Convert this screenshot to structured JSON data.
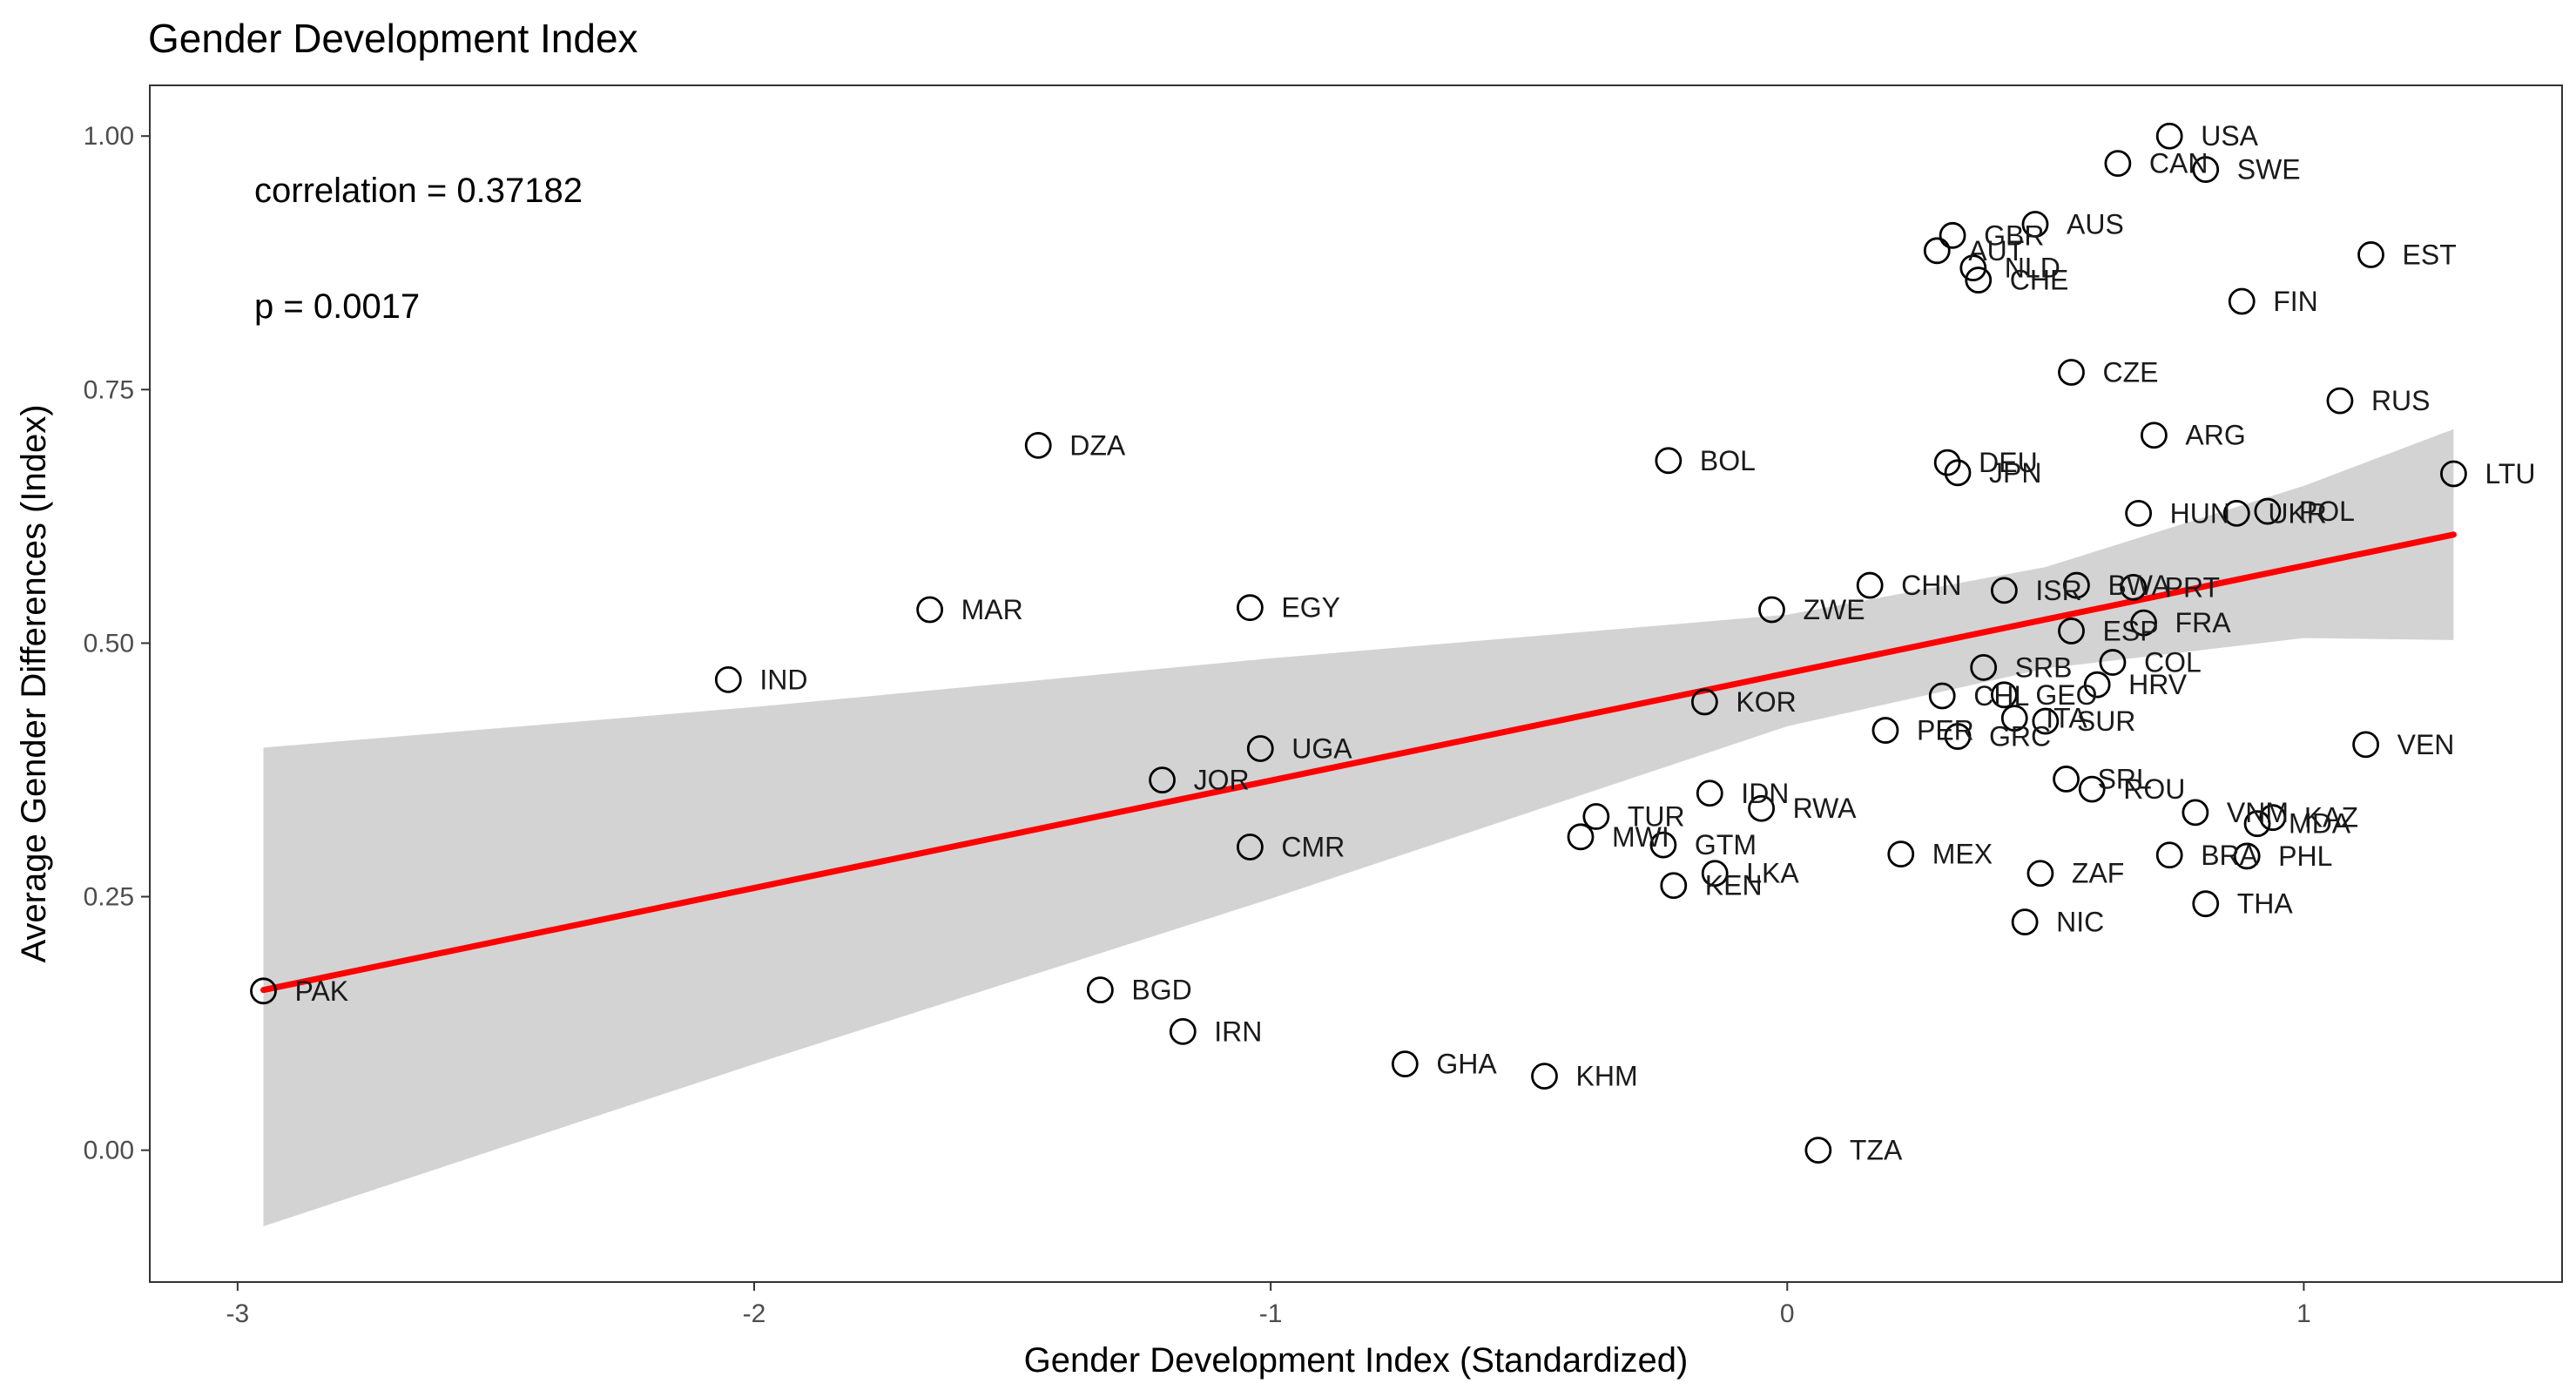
{
  "chart_data": {
    "type": "scatter",
    "title": "Gender Development Index",
    "xlabel": "Gender Development Index (Standardized)",
    "ylabel": "Average Gender Differences (Index)",
    "xlim": [
      -3.17,
      1.5
    ],
    "ylim": [
      -0.13,
      1.05
    ],
    "x_ticks": [
      -3,
      -2,
      -1,
      0,
      1
    ],
    "x_tick_labels": [
      "-3",
      "-2",
      "-1",
      "0",
      "1"
    ],
    "y_ticks": [
      0,
      0.25,
      0.5,
      0.75,
      1
    ],
    "y_tick_labels": [
      "0.00",
      "0.25",
      "0.50",
      "0.75",
      "1.00"
    ],
    "grid": false,
    "annotations": [
      "correlation = 0.37182",
      "p = 0.0017"
    ],
    "regression": {
      "x": [
        -2.95,
        1.29
      ],
      "y": [
        0.158,
        0.607
      ],
      "ci": [
        {
          "x": -2.95,
          "lo": -0.075,
          "hi": 0.397
        },
        {
          "x": -2.0,
          "lo": 0.085,
          "hi": 0.437
        },
        {
          "x": -1.0,
          "lo": 0.248,
          "hi": 0.485
        },
        {
          "x": 0.0,
          "lo": 0.418,
          "hi": 0.528
        },
        {
          "x": 0.5,
          "lo": 0.475,
          "hi": 0.575
        },
        {
          "x": 1.0,
          "lo": 0.505,
          "hi": 0.655
        },
        {
          "x": 1.29,
          "lo": 0.503,
          "hi": 0.711
        }
      ],
      "line_color": "#ff0000",
      "band_color": "#d3d3d3"
    },
    "points": [
      {
        "label": "USA",
        "x": 0.74,
        "y": 1.0
      },
      {
        "label": "CAN",
        "x": 0.64,
        "y": 0.973
      },
      {
        "label": "SWE",
        "x": 0.81,
        "y": 0.967
      },
      {
        "label": "AUS",
        "x": 0.48,
        "y": 0.913
      },
      {
        "label": "GBR",
        "x": 0.32,
        "y": 0.902
      },
      {
        "label": "AUT",
        "x": 0.29,
        "y": 0.887
      },
      {
        "label": "NLD",
        "x": 0.36,
        "y": 0.87
      },
      {
        "label": "CHE",
        "x": 0.37,
        "y": 0.858
      },
      {
        "label": "EST",
        "x": 1.13,
        "y": 0.883
      },
      {
        "label": "FIN",
        "x": 0.88,
        "y": 0.837
      },
      {
        "label": "CZE",
        "x": 0.55,
        "y": 0.767
      },
      {
        "label": "RUS",
        "x": 1.07,
        "y": 0.739
      },
      {
        "label": "DZA",
        "x": -1.45,
        "y": 0.695
      },
      {
        "label": "ARG",
        "x": 0.71,
        "y": 0.705
      },
      {
        "label": "BOL",
        "x": -0.23,
        "y": 0.68
      },
      {
        "label": "DEU",
        "x": 0.31,
        "y": 0.678
      },
      {
        "label": "JPN",
        "x": 0.33,
        "y": 0.668
      },
      {
        "label": "LTU",
        "x": 1.29,
        "y": 0.667
      },
      {
        "label": "HUN",
        "x": 0.68,
        "y": 0.628
      },
      {
        "label": "UKR",
        "x": 0.87,
        "y": 0.628
      },
      {
        "label": "POL",
        "x": 0.93,
        "y": 0.63
      },
      {
        "label": "CHN",
        "x": 0.16,
        "y": 0.557
      },
      {
        "label": "ISR",
        "x": 0.42,
        "y": 0.552
      },
      {
        "label": "BWA",
        "x": 0.56,
        "y": 0.557
      },
      {
        "label": "PRT",
        "x": 0.67,
        "y": 0.555
      },
      {
        "label": "MAR",
        "x": -1.66,
        "y": 0.533
      },
      {
        "label": "EGY",
        "x": -1.04,
        "y": 0.535
      },
      {
        "label": "ZWE",
        "x": -0.03,
        "y": 0.533
      },
      {
        "label": "FRA",
        "x": 0.69,
        "y": 0.52
      },
      {
        "label": "ESP",
        "x": 0.55,
        "y": 0.512
      },
      {
        "label": "COL",
        "x": 0.63,
        "y": 0.481
      },
      {
        "label": "SRB",
        "x": 0.38,
        "y": 0.476
      },
      {
        "label": "IND",
        "x": -2.05,
        "y": 0.464
      },
      {
        "label": "HRV",
        "x": 0.6,
        "y": 0.459
      },
      {
        "label": "CHL",
        "x": 0.3,
        "y": 0.448
      },
      {
        "label": "GEO",
        "x": 0.42,
        "y": 0.449
      },
      {
        "label": "KOR",
        "x": -0.16,
        "y": 0.442
      },
      {
        "label": "ITA",
        "x": 0.44,
        "y": 0.426
      },
      {
        "label": "SUR",
        "x": 0.5,
        "y": 0.423
      },
      {
        "label": "PER",
        "x": 0.19,
        "y": 0.414
      },
      {
        "label": "GRC",
        "x": 0.33,
        "y": 0.408
      },
      {
        "label": "VEN",
        "x": 1.12,
        "y": 0.4
      },
      {
        "label": "UGA",
        "x": -1.02,
        "y": 0.396
      },
      {
        "label": "JOR",
        "x": -1.21,
        "y": 0.365
      },
      {
        "label": "SRL",
        "x": 0.54,
        "y": 0.366
      },
      {
        "label": "ROU",
        "x": 0.59,
        "y": 0.356
      },
      {
        "label": "IDN",
        "x": -0.15,
        "y": 0.352
      },
      {
        "label": "RWA",
        "x": -0.05,
        "y": 0.337
      },
      {
        "label": "VNM",
        "x": 0.79,
        "y": 0.333
      },
      {
        "label": "KAZ",
        "x": 0.94,
        "y": 0.328
      },
      {
        "label": "MDA",
        "x": 0.91,
        "y": 0.322
      },
      {
        "label": "TUR",
        "x": -0.37,
        "y": 0.329
      },
      {
        "label": "MWI",
        "x": -0.4,
        "y": 0.309
      },
      {
        "label": "GTM",
        "x": -0.24,
        "y": 0.301
      },
      {
        "label": "CMR",
        "x": -1.04,
        "y": 0.299
      },
      {
        "label": "MEX",
        "x": 0.22,
        "y": 0.292
      },
      {
        "label": "BRA",
        "x": 0.74,
        "y": 0.291
      },
      {
        "label": "PHL",
        "x": 0.89,
        "y": 0.29
      },
      {
        "label": "LKA",
        "x": -0.14,
        "y": 0.273
      },
      {
        "label": "ZAF",
        "x": 0.49,
        "y": 0.273
      },
      {
        "label": "KEN",
        "x": -0.22,
        "y": 0.261
      },
      {
        "label": "THA",
        "x": 0.81,
        "y": 0.243
      },
      {
        "label": "NIC",
        "x": 0.46,
        "y": 0.225
      },
      {
        "label": "PAK",
        "x": -2.95,
        "y": 0.157
      },
      {
        "label": "BGD",
        "x": -1.33,
        "y": 0.158
      },
      {
        "label": "IRN",
        "x": -1.17,
        "y": 0.117
      },
      {
        "label": "GHA",
        "x": -0.74,
        "y": 0.085
      },
      {
        "label": "KHM",
        "x": -0.47,
        "y": 0.073
      },
      {
        "label": "TZA",
        "x": 0.06,
        "y": 0.0
      }
    ]
  }
}
